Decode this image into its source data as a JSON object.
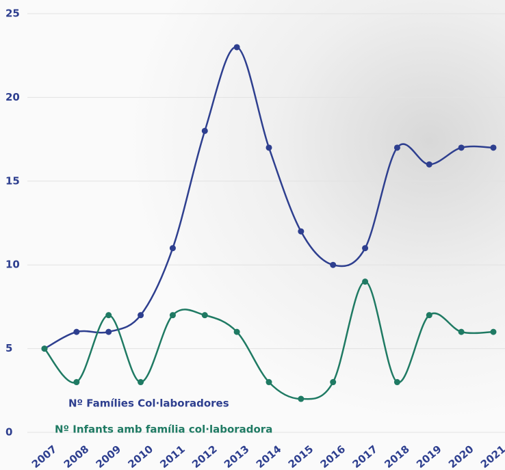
{
  "chart_data": {
    "type": "line",
    "categories": [
      "2007",
      "2008",
      "2009",
      "2010",
      "2011",
      "2012",
      "2013",
      "2014",
      "2015",
      "2016",
      "2017",
      "2018",
      "2019",
      "2020",
      "2021"
    ],
    "series": [
      {
        "name": "Nº Famílies Col·laboradores",
        "color": "#2e3f8f",
        "values": [
          5,
          6,
          6,
          7,
          11,
          18,
          23,
          17,
          12,
          10,
          11,
          17,
          16,
          17,
          17
        ]
      },
      {
        "name": "Nº Infants amb família col·laboradora",
        "color": "#1f7a63",
        "values": [
          5,
          3,
          7,
          3,
          7,
          7,
          6,
          3,
          2,
          3,
          9,
          3,
          7,
          6,
          6
        ]
      }
    ],
    "ylim": [
      0,
      25
    ],
    "yticks": [
      0,
      5,
      10,
      15,
      20,
      25
    ],
    "grid": true
  }
}
